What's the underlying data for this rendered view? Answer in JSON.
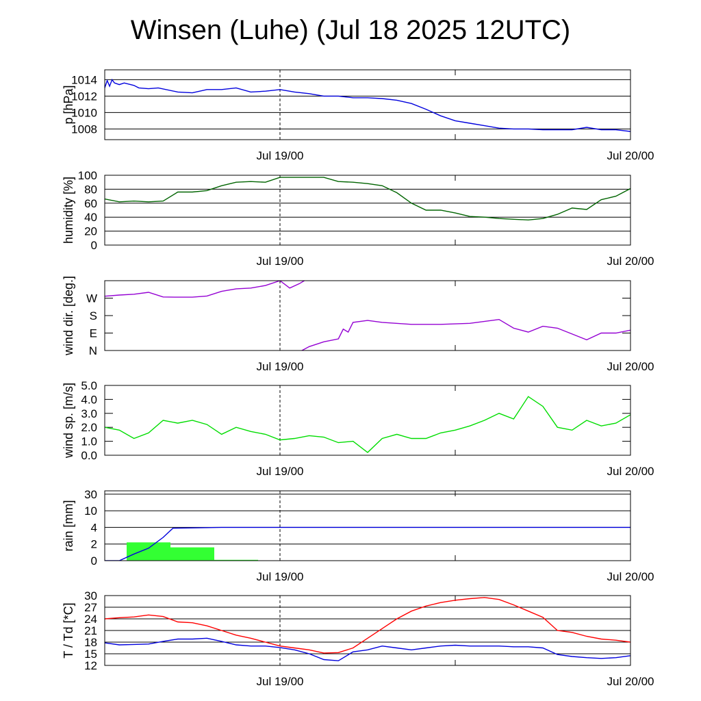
{
  "title": "Winsen (Luhe) (Jul 18 2025 12UTC)",
  "x_axis": {
    "start": "2025-07-18T12:00Z",
    "end": "2025-07-20T00:00Z",
    "tick_labels": [
      {
        "at": "2025-07-19T00:00Z",
        "label": "Jul 19/00"
      },
      {
        "at": "2025-07-20T00:00Z",
        "label": "Jul 20/00"
      }
    ],
    "minor_ticks": [
      "2025-07-19T12:00Z"
    ],
    "dashed_marker": "2025-07-19T00:00Z"
  },
  "colors": {
    "pressure": "#0000dd",
    "humidity": "#006400",
    "wind_dir": "#9400d3",
    "wind_speed": "#00dd00",
    "rain_total": "#0000dd",
    "rain_bars": "#33ff33",
    "temperature": "#ff0000",
    "dewpoint": "#0000dd"
  },
  "chart_data": [
    {
      "type": "line",
      "id": "pressure",
      "ylabel": "p [hPa]",
      "ylim": [
        1006.7,
        1015.2
      ],
      "yticks": [
        1008,
        1010,
        1012,
        1014
      ],
      "grid": true,
      "series": [
        {
          "color_key": "pressure",
          "x": [
            "2025-07-18T12:00Z",
            "2025-07-18T12:10Z",
            "2025-07-18T12:20Z",
            "2025-07-18T12:30Z",
            "2025-07-18T12:40Z",
            "2025-07-18T13:00Z",
            "2025-07-18T13:20Z",
            "2025-07-18T14:00Z",
            "2025-07-18T14:20Z",
            "2025-07-18T15:00Z",
            "2025-07-18T15:40Z",
            "2025-07-18T17:00Z",
            "2025-07-18T18:00Z",
            "2025-07-18T19:00Z",
            "2025-07-18T20:00Z",
            "2025-07-18T21:00Z",
            "2025-07-18T22:00Z",
            "2025-07-18T23:00Z",
            "2025-07-19T00:00Z",
            "2025-07-19T01:00Z",
            "2025-07-19T02:00Z",
            "2025-07-19T03:00Z",
            "2025-07-19T04:00Z",
            "2025-07-19T05:00Z",
            "2025-07-19T06:00Z",
            "2025-07-19T07:00Z",
            "2025-07-19T08:00Z",
            "2025-07-19T09:00Z",
            "2025-07-19T10:00Z",
            "2025-07-19T11:00Z",
            "2025-07-19T12:00Z",
            "2025-07-19T13:00Z",
            "2025-07-19T14:00Z",
            "2025-07-19T15:00Z",
            "2025-07-19T16:00Z",
            "2025-07-19T17:00Z",
            "2025-07-19T18:00Z",
            "2025-07-19T19:00Z",
            "2025-07-19T20:00Z",
            "2025-07-19T21:00Z",
            "2025-07-19T22:00Z",
            "2025-07-19T23:00Z",
            "2025-07-20T00:00Z"
          ],
          "values": [
            1013.0,
            1013.9,
            1013.2,
            1014.0,
            1013.6,
            1013.4,
            1013.6,
            1013.3,
            1013.0,
            1012.9,
            1013.0,
            1012.5,
            1012.4,
            1012.8,
            1012.8,
            1013.0,
            1012.5,
            1012.6,
            1012.8,
            1012.5,
            1012.3,
            1012.0,
            1012.0,
            1011.8,
            1011.8,
            1011.7,
            1011.5,
            1011.1,
            1010.4,
            1009.6,
            1009.0,
            1008.7,
            1008.4,
            1008.1,
            1008.0,
            1008.0,
            1007.9,
            1007.9,
            1007.9,
            1008.2,
            1007.9,
            1007.9,
            1007.7
          ]
        }
      ]
    },
    {
      "type": "line",
      "id": "humidity",
      "ylabel": "humidity [%]",
      "ylim": [
        0,
        100
      ],
      "yticks": [
        0,
        20,
        40,
        60,
        80,
        100
      ],
      "grid": true,
      "series": [
        {
          "color_key": "humidity",
          "x": [
            "2025-07-18T12:00Z",
            "2025-07-18T13:00Z",
            "2025-07-18T14:00Z",
            "2025-07-18T15:00Z",
            "2025-07-18T16:00Z",
            "2025-07-18T17:00Z",
            "2025-07-18T18:00Z",
            "2025-07-18T19:00Z",
            "2025-07-18T20:00Z",
            "2025-07-18T21:00Z",
            "2025-07-18T22:00Z",
            "2025-07-18T23:00Z",
            "2025-07-19T00:00Z",
            "2025-07-19T01:00Z",
            "2025-07-19T02:00Z",
            "2025-07-19T03:00Z",
            "2025-07-19T04:00Z",
            "2025-07-19T05:00Z",
            "2025-07-19T06:00Z",
            "2025-07-19T07:00Z",
            "2025-07-19T08:00Z",
            "2025-07-19T09:00Z",
            "2025-07-19T10:00Z",
            "2025-07-19T11:00Z",
            "2025-07-19T12:00Z",
            "2025-07-19T13:00Z",
            "2025-07-19T14:00Z",
            "2025-07-19T15:00Z",
            "2025-07-19T16:00Z",
            "2025-07-19T17:00Z",
            "2025-07-19T18:00Z",
            "2025-07-19T19:00Z",
            "2025-07-19T20:00Z",
            "2025-07-19T21:00Z",
            "2025-07-19T22:00Z",
            "2025-07-19T23:00Z",
            "2025-07-20T00:00Z"
          ],
          "values": [
            66,
            62,
            63,
            62,
            63,
            76,
            76,
            78,
            85,
            90,
            91,
            90,
            97,
            97,
            97,
            97,
            91,
            90,
            88,
            85,
            75,
            60,
            50,
            50,
            46,
            41,
            40,
            38,
            37,
            36,
            38,
            44,
            53,
            51,
            65,
            70,
            81
          ]
        }
      ]
    },
    {
      "type": "line",
      "id": "wind_dir",
      "ylabel": "wind dir. [deg.]",
      "ylim": [
        0,
        360
      ],
      "ytick_labels": [
        {
          "v": 0,
          "label": "N"
        },
        {
          "v": 90,
          "label": "E"
        },
        {
          "v": 180,
          "label": "S"
        },
        {
          "v": 270,
          "label": "W"
        }
      ],
      "grid": false,
      "series": [
        {
          "color_key": "wind_dir",
          "x": [
            "2025-07-18T12:00Z",
            "2025-07-18T13:00Z",
            "2025-07-18T14:00Z",
            "2025-07-18T15:00Z",
            "2025-07-18T16:00Z",
            "2025-07-18T17:00Z",
            "2025-07-18T18:00Z",
            "2025-07-18T19:00Z",
            "2025-07-18T20:00Z",
            "2025-07-18T21:00Z",
            "2025-07-18T22:00Z",
            "2025-07-18T23:00Z",
            "2025-07-19T00:00Z",
            "2025-07-19T00:40Z",
            "2025-07-19T01:20Z",
            "2025-07-19T01:40Z"
          ],
          "values": [
            280,
            286,
            290,
            300,
            276,
            275,
            275,
            281,
            305,
            318,
            322,
            335,
            360,
            322,
            345,
            360
          ]
        },
        {
          "color_key": "wind_dir",
          "x": [
            "2025-07-19T01:30Z",
            "2025-07-19T02:00Z",
            "2025-07-19T03:00Z",
            "2025-07-19T04:00Z",
            "2025-07-19T04:20Z",
            "2025-07-19T04:40Z",
            "2025-07-19T05:00Z",
            "2025-07-19T06:00Z",
            "2025-07-19T07:00Z",
            "2025-07-19T09:00Z",
            "2025-07-19T11:00Z",
            "2025-07-19T13:00Z",
            "2025-07-19T15:00Z",
            "2025-07-19T16:00Z",
            "2025-07-19T17:00Z",
            "2025-07-19T18:00Z",
            "2025-07-19T19:00Z",
            "2025-07-19T20:00Z",
            "2025-07-19T21:00Z",
            "2025-07-19T22:00Z",
            "2025-07-19T23:00Z",
            "2025-07-20T00:00Z"
          ],
          "values": [
            0,
            20,
            45,
            60,
            110,
            95,
            145,
            155,
            145,
            135,
            135,
            140,
            160,
            115,
            95,
            125,
            115,
            85,
            55,
            90,
            90,
            105
          ]
        }
      ]
    },
    {
      "type": "line",
      "id": "wind_speed",
      "ylabel": "wind sp. [m/s]",
      "ylim": [
        0,
        5
      ],
      "yticks": [
        0.0,
        1.0,
        2.0,
        3.0,
        4.0,
        5.0
      ],
      "grid": false,
      "series": [
        {
          "color_key": "wind_speed",
          "x": [
            "2025-07-18T12:00Z",
            "2025-07-18T13:00Z",
            "2025-07-18T14:00Z",
            "2025-07-18T15:00Z",
            "2025-07-18T16:00Z",
            "2025-07-18T17:00Z",
            "2025-07-18T18:00Z",
            "2025-07-18T19:00Z",
            "2025-07-18T20:00Z",
            "2025-07-18T21:00Z",
            "2025-07-18T22:00Z",
            "2025-07-18T23:00Z",
            "2025-07-19T00:00Z",
            "2025-07-19T01:00Z",
            "2025-07-19T02:00Z",
            "2025-07-19T03:00Z",
            "2025-07-19T04:00Z",
            "2025-07-19T05:00Z",
            "2025-07-19T06:00Z",
            "2025-07-19T07:00Z",
            "2025-07-19T08:00Z",
            "2025-07-19T09:00Z",
            "2025-07-19T10:00Z",
            "2025-07-19T11:00Z",
            "2025-07-19T12:00Z",
            "2025-07-19T13:00Z",
            "2025-07-19T14:00Z",
            "2025-07-19T15:00Z",
            "2025-07-19T16:00Z",
            "2025-07-19T17:00Z",
            "2025-07-19T18:00Z",
            "2025-07-19T19:00Z",
            "2025-07-19T20:00Z",
            "2025-07-19T21:00Z",
            "2025-07-19T22:00Z",
            "2025-07-19T23:00Z",
            "2025-07-20T00:00Z"
          ],
          "values": [
            2.0,
            1.8,
            1.2,
            1.6,
            2.5,
            2.3,
            2.5,
            2.2,
            1.5,
            2.0,
            1.7,
            1.5,
            1.1,
            1.2,
            1.4,
            1.3,
            0.9,
            1.0,
            0.2,
            1.2,
            1.5,
            1.2,
            1.2,
            1.6,
            1.8,
            2.1,
            2.5,
            3.0,
            2.6,
            4.2,
            3.5,
            2.0,
            1.8,
            2.5,
            2.1,
            2.3,
            2.9
          ]
        }
      ]
    },
    {
      "type": "bar",
      "id": "rain",
      "ylabel": "rain [mm]",
      "scale": "nonlinear",
      "yticks": [
        0,
        2,
        4,
        10,
        30
      ],
      "grid": true,
      "bars": {
        "color_key": "rain_bars",
        "intervals": [
          {
            "start": "2025-07-18T13:30Z",
            "end": "2025-07-18T16:30Z",
            "value": 2.2
          },
          {
            "start": "2025-07-18T16:30Z",
            "end": "2025-07-18T19:30Z",
            "value": 1.6
          },
          {
            "start": "2025-07-18T19:30Z",
            "end": "2025-07-18T22:30Z",
            "value": 0.1
          }
        ]
      },
      "series": [
        {
          "color_key": "rain_total",
          "x": [
            "2025-07-18T12:00Z",
            "2025-07-18T13:00Z",
            "2025-07-18T14:00Z",
            "2025-07-18T15:00Z",
            "2025-07-18T16:00Z",
            "2025-07-18T16:40Z",
            "2025-07-18T20:00Z",
            "2025-07-19T00:00Z",
            "2025-07-20T00:00Z"
          ],
          "values": [
            0,
            0,
            0.8,
            1.5,
            2.8,
            3.9,
            4.0,
            4.0,
            4.0
          ]
        }
      ]
    },
    {
      "type": "line",
      "id": "temperature",
      "ylabel": "T / Td [*C]",
      "ylim": [
        12,
        30
      ],
      "yticks": [
        12,
        15,
        18,
        21,
        24,
        27,
        30
      ],
      "grid": true,
      "series": [
        {
          "color_key": "temperature",
          "x": [
            "2025-07-18T12:00Z",
            "2025-07-18T13:00Z",
            "2025-07-18T14:00Z",
            "2025-07-18T15:00Z",
            "2025-07-18T16:00Z",
            "2025-07-18T17:00Z",
            "2025-07-18T18:00Z",
            "2025-07-18T19:00Z",
            "2025-07-18T20:00Z",
            "2025-07-18T21:00Z",
            "2025-07-18T22:00Z",
            "2025-07-18T23:00Z",
            "2025-07-19T00:00Z",
            "2025-07-19T01:00Z",
            "2025-07-19T02:00Z",
            "2025-07-19T03:00Z",
            "2025-07-19T04:00Z",
            "2025-07-19T05:00Z",
            "2025-07-19T06:00Z",
            "2025-07-19T07:00Z",
            "2025-07-19T08:00Z",
            "2025-07-19T09:00Z",
            "2025-07-19T10:00Z",
            "2025-07-19T11:00Z",
            "2025-07-19T12:00Z",
            "2025-07-19T13:00Z",
            "2025-07-19T14:00Z",
            "2025-07-19T15:00Z",
            "2025-07-19T16:00Z",
            "2025-07-19T17:00Z",
            "2025-07-19T18:00Z",
            "2025-07-19T19:00Z",
            "2025-07-19T20:00Z",
            "2025-07-19T21:00Z",
            "2025-07-19T22:00Z",
            "2025-07-19T23:00Z",
            "2025-07-20T00:00Z"
          ],
          "values": [
            24.0,
            24.3,
            24.5,
            25.0,
            24.6,
            23.2,
            23.0,
            22.2,
            21.0,
            19.8,
            19.0,
            18.0,
            17.0,
            16.5,
            16.0,
            15.2,
            15.3,
            16.5,
            19.0,
            21.5,
            24.0,
            26.0,
            27.3,
            28.2,
            28.8,
            29.2,
            29.5,
            29.0,
            27.6,
            26.0,
            24.4,
            21.0,
            20.5,
            19.5,
            18.8,
            18.5,
            18.0
          ]
        },
        {
          "color_key": "dewpoint",
          "x": [
            "2025-07-18T12:00Z",
            "2025-07-18T13:00Z",
            "2025-07-18T14:00Z",
            "2025-07-18T15:00Z",
            "2025-07-18T16:00Z",
            "2025-07-18T17:00Z",
            "2025-07-18T18:00Z",
            "2025-07-18T19:00Z",
            "2025-07-18T20:00Z",
            "2025-07-18T21:00Z",
            "2025-07-18T22:00Z",
            "2025-07-18T23:00Z",
            "2025-07-19T00:00Z",
            "2025-07-19T01:00Z",
            "2025-07-19T02:00Z",
            "2025-07-19T03:00Z",
            "2025-07-19T04:00Z",
            "2025-07-19T05:00Z",
            "2025-07-19T06:00Z",
            "2025-07-19T07:00Z",
            "2025-07-19T08:00Z",
            "2025-07-19T09:00Z",
            "2025-07-19T10:00Z",
            "2025-07-19T11:00Z",
            "2025-07-19T12:00Z",
            "2025-07-19T13:00Z",
            "2025-07-19T14:00Z",
            "2025-07-19T15:00Z",
            "2025-07-19T16:00Z",
            "2025-07-19T17:00Z",
            "2025-07-19T18:00Z",
            "2025-07-19T19:00Z",
            "2025-07-19T20:00Z",
            "2025-07-19T21:00Z",
            "2025-07-19T22:00Z",
            "2025-07-19T23:00Z",
            "2025-07-20T00:00Z"
          ],
          "values": [
            17.8,
            17.3,
            17.4,
            17.5,
            18.2,
            18.8,
            18.8,
            19.0,
            18.2,
            17.3,
            17.0,
            17.0,
            16.6,
            16.0,
            15.0,
            13.5,
            13.2,
            15.5,
            16.0,
            17.0,
            16.5,
            16.0,
            16.5,
            17.0,
            17.2,
            17.0,
            17.0,
            17.0,
            16.8,
            16.8,
            16.5,
            14.8,
            14.3,
            14.0,
            13.8,
            14.0,
            14.5
          ]
        }
      ]
    }
  ]
}
